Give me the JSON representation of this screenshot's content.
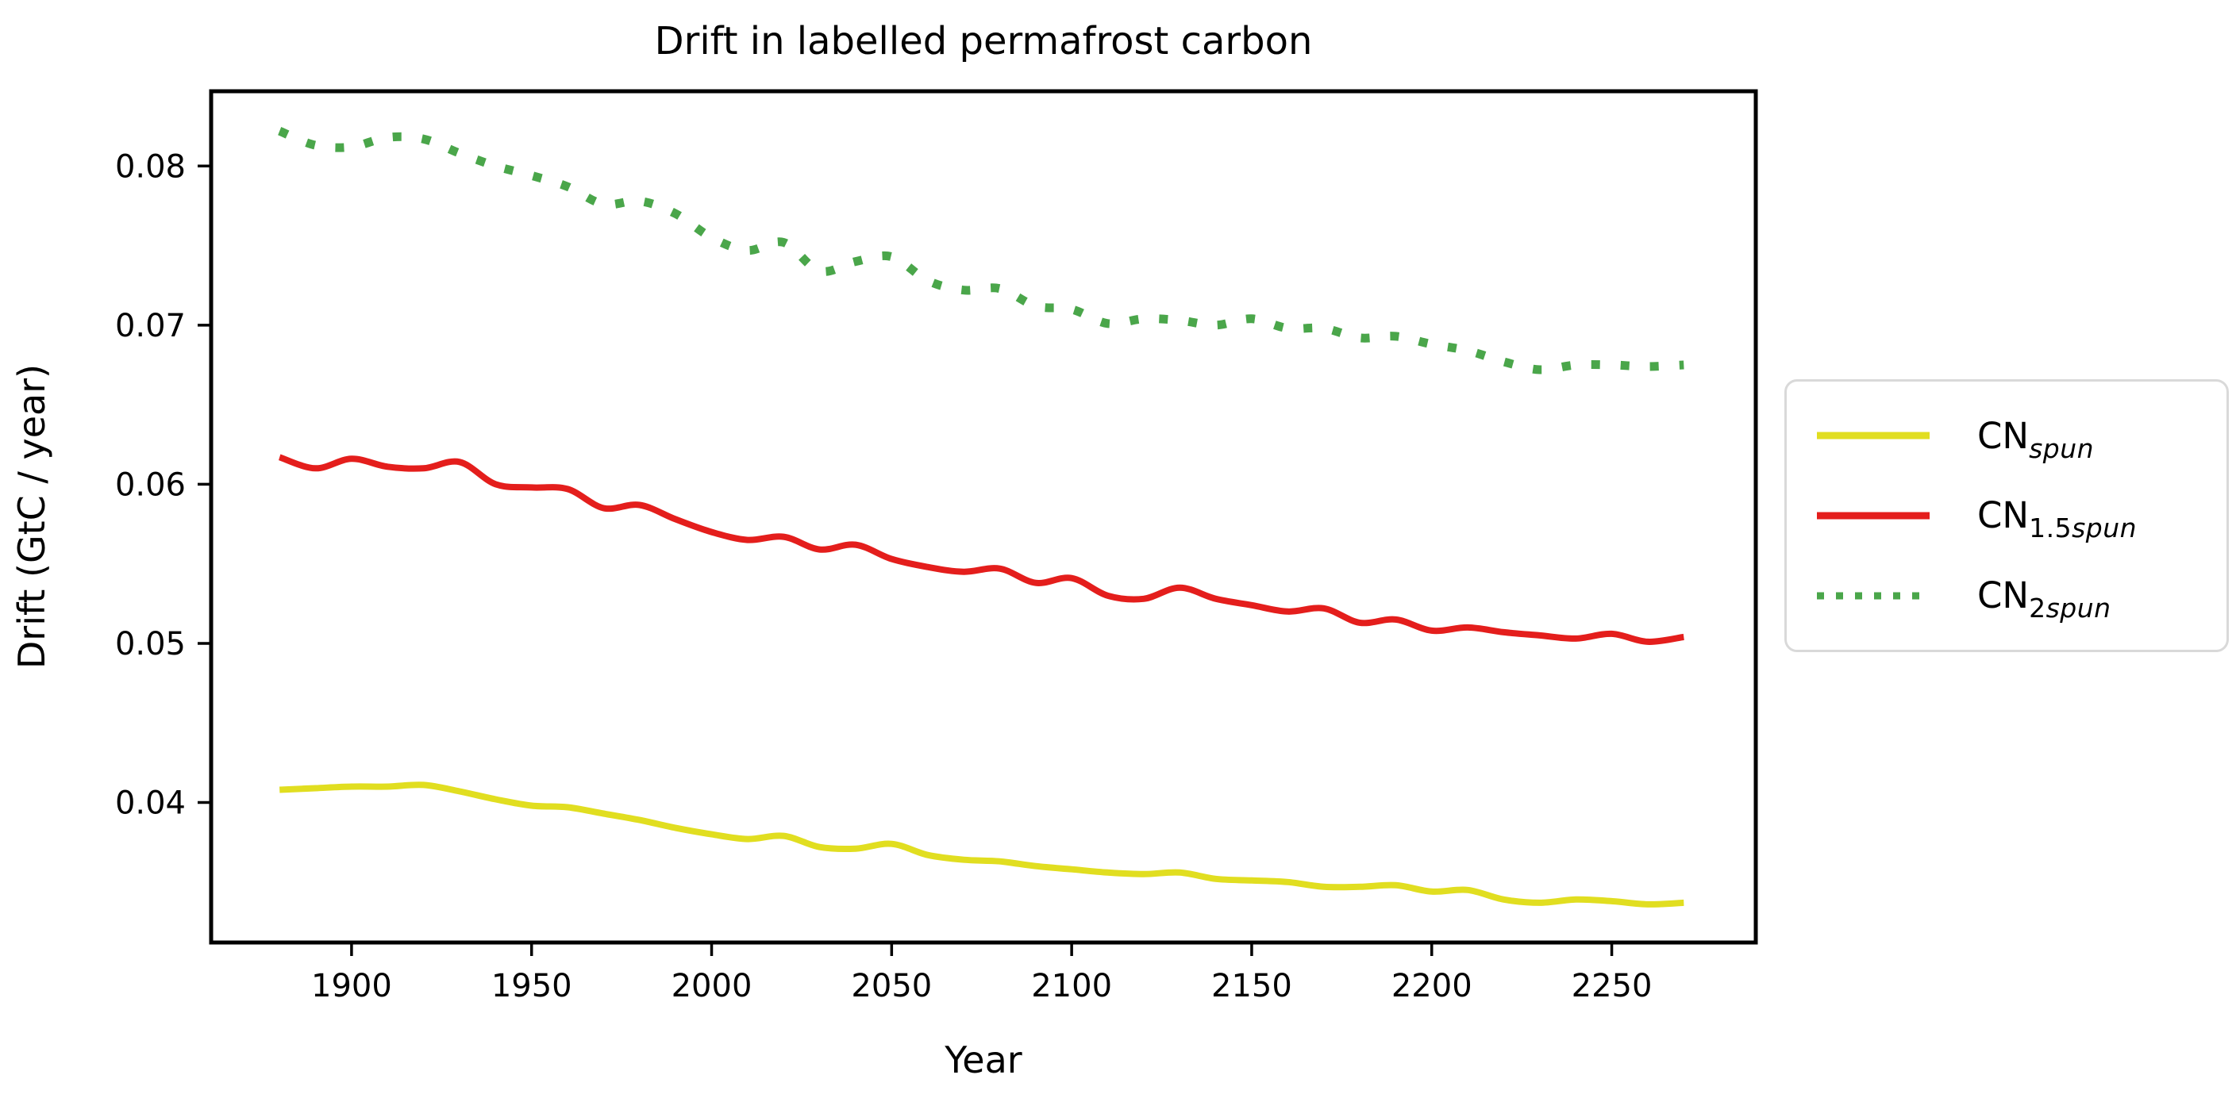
{
  "title": "Drift in labelled permafrost carbon",
  "chart_data": {
    "type": "line",
    "title": "Drift in labelled permafrost carbon",
    "xlabel": "Year",
    "ylabel": "Drift (GtC / year)",
    "xlim": [
      1861,
      2290
    ],
    "ylim": [
      0.0312,
      0.0847
    ],
    "x_ticks": [
      1900,
      1950,
      2000,
      2050,
      2100,
      2150,
      2200,
      2250
    ],
    "x_tick_labels": [
      "1900",
      "1950",
      "2000",
      "2050",
      "2100",
      "2150",
      "2200",
      "2250"
    ],
    "y_ticks": [
      0.04,
      0.05,
      0.06,
      0.07,
      0.08
    ],
    "y_tick_labels": [
      "0.04",
      "0.05",
      "0.06",
      "0.07",
      "0.08"
    ],
    "grid": false,
    "legend_position": "center right, outside axes",
    "x": [
      1880,
      1890,
      1900,
      1910,
      1920,
      1930,
      1940,
      1950,
      1960,
      1970,
      1980,
      1990,
      2000,
      2010,
      2020,
      2030,
      2040,
      2050,
      2060,
      2070,
      2080,
      2090,
      2100,
      2110,
      2120,
      2130,
      2140,
      2150,
      2160,
      2170,
      2180,
      2190,
      2200,
      2210,
      2220,
      2230,
      2240,
      2250,
      2260,
      2270
    ],
    "series": [
      {
        "name": "CN_spun",
        "label_base": "CN",
        "label_sub_num": "",
        "label_sub_word": "spun",
        "color": "#e1de20",
        "style": "solid",
        "values": [
          0.0408,
          0.0409,
          0.041,
          0.041,
          0.0411,
          0.0407,
          0.0402,
          0.0398,
          0.0397,
          0.0393,
          0.0389,
          0.0384,
          0.038,
          0.0377,
          0.0379,
          0.0372,
          0.0371,
          0.0374,
          0.0367,
          0.0364,
          0.0363,
          0.036,
          0.0358,
          0.0356,
          0.0355,
          0.0356,
          0.0352,
          0.0351,
          0.035,
          0.0347,
          0.0347,
          0.0348,
          0.0344,
          0.0345,
          0.0339,
          0.0337,
          0.0339,
          0.0338,
          0.0336,
          0.0337
        ]
      },
      {
        "name": "CN_1.5spun",
        "label_base": "CN",
        "label_sub_num": "1.5",
        "label_sub_word": "spun",
        "color": "#e41e1c",
        "style": "solid",
        "values": [
          0.0617,
          0.061,
          0.0616,
          0.0611,
          0.061,
          0.0614,
          0.06,
          0.0598,
          0.0597,
          0.0585,
          0.0587,
          0.0578,
          0.057,
          0.0565,
          0.0567,
          0.0559,
          0.0562,
          0.0553,
          0.0548,
          0.0545,
          0.0547,
          0.0538,
          0.0541,
          0.053,
          0.0528,
          0.0535,
          0.0528,
          0.0524,
          0.052,
          0.0522,
          0.0513,
          0.0515,
          0.0508,
          0.051,
          0.0507,
          0.0505,
          0.0503,
          0.0506,
          0.0501,
          0.0504
        ]
      },
      {
        "name": "CN_2spun",
        "label_base": "CN",
        "label_sub_num": "2",
        "label_sub_word": "spun",
        "color": "#4aa64a",
        "style": "dotted",
        "values": [
          0.0822,
          0.0813,
          0.0812,
          0.0818,
          0.0817,
          0.0808,
          0.08,
          0.0794,
          0.0787,
          0.0776,
          0.0778,
          0.077,
          0.0755,
          0.0747,
          0.0752,
          0.0734,
          0.074,
          0.0743,
          0.0728,
          0.0722,
          0.0723,
          0.0712,
          0.071,
          0.0701,
          0.0704,
          0.0703,
          0.07,
          0.0704,
          0.0698,
          0.0698,
          0.0692,
          0.0693,
          0.0688,
          0.0684,
          0.0677,
          0.0672,
          0.0675,
          0.0675,
          0.0674,
          0.0675
        ]
      }
    ]
  }
}
